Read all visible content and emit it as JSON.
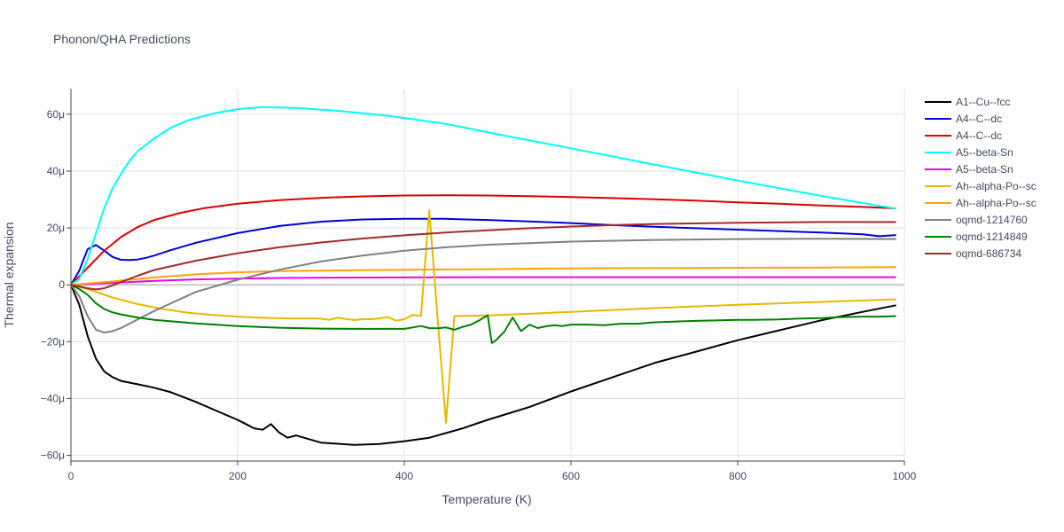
{
  "chart_data": {
    "type": "line",
    "title": "Phonon/QHA Predictions",
    "xlabel": "Temperature (K)",
    "ylabel": "Thermal expansion",
    "xlim": [
      0,
      1000
    ],
    "ylim": [
      -6.2e-05,
      6.9e-05
    ],
    "x_ticks": [
      {
        "value": 0,
        "label": "0"
      },
      {
        "value": 200,
        "label": "200"
      },
      {
        "value": 400,
        "label": "400"
      },
      {
        "value": 600,
        "label": "600"
      },
      {
        "value": 800,
        "label": "800"
      },
      {
        "value": 1000,
        "label": "1000"
      }
    ],
    "y_ticks": [
      {
        "value": -6e-05,
        "label": "−60μ"
      },
      {
        "value": -4e-05,
        "label": "−40μ"
      },
      {
        "value": -2e-05,
        "label": "−20μ"
      },
      {
        "value": 0,
        "label": "0"
      },
      {
        "value": 2e-05,
        "label": "20μ"
      },
      {
        "value": 4e-05,
        "label": "40μ"
      },
      {
        "value": 6e-05,
        "label": "60μ"
      }
    ],
    "grid": true,
    "legend_position": "right",
    "series": [
      {
        "name": "A1--Cu--fcc",
        "color": "#000000",
        "x": [
          0,
          10,
          20,
          30,
          40,
          50,
          60,
          80,
          100,
          120,
          150,
          180,
          200,
          210,
          220,
          230,
          240,
          250,
          260,
          270,
          300,
          340,
          370,
          400,
          430,
          470,
          500,
          550,
          600,
          650,
          700,
          750,
          800,
          850,
          900,
          950,
          990
        ],
        "y": [
          0,
          -7e-06,
          -1.8e-05,
          -2.6e-05,
          -3.05e-05,
          -3.25e-05,
          -3.38e-05,
          -3.5e-05,
          -3.62e-05,
          -3.78e-05,
          -4.12e-05,
          -4.5e-05,
          -4.75e-05,
          -4.9e-05,
          -5.05e-05,
          -5.1e-05,
          -4.9e-05,
          -5.2e-05,
          -5.38e-05,
          -5.3e-05,
          -5.55e-05,
          -5.63e-05,
          -5.6e-05,
          -5.5e-05,
          -5.38e-05,
          -5.05e-05,
          -4.75e-05,
          -4.3e-05,
          -3.75e-05,
          -3.25e-05,
          -2.75e-05,
          -2.35e-05,
          -1.95e-05,
          -1.6e-05,
          -1.25e-05,
          -9.5e-06,
          -7.2e-06
        ]
      },
      {
        "name": "A4--C--dc",
        "color": "#0000dd",
        "x": [
          0,
          10,
          20,
          30,
          40,
          50,
          60,
          70,
          80,
          90,
          100,
          120,
          150,
          200,
          250,
          300,
          350,
          400,
          450,
          500,
          550,
          600,
          650,
          700,
          750,
          800,
          850,
          900,
          950,
          970,
          990
        ],
        "y": [
          0,
          5e-06,
          1.25e-05,
          1.4e-05,
          1.2e-05,
          9.8e-06,
          8.8e-06,
          8.7e-06,
          8.9e-06,
          9.5e-06,
          1.03e-05,
          1.22e-05,
          1.48e-05,
          1.82e-05,
          2.07e-05,
          2.22e-05,
          2.3e-05,
          2.32e-05,
          2.32e-05,
          2.28e-05,
          2.23e-05,
          2.17e-05,
          2.1e-05,
          2.04e-05,
          1.99e-05,
          1.94e-05,
          1.89e-05,
          1.84e-05,
          1.78e-05,
          1.71e-05,
          1.75e-05
        ]
      },
      {
        "name": "A4--C--dc",
        "color": "#dd0000",
        "x": [
          0,
          20,
          40,
          60,
          80,
          100,
          130,
          160,
          200,
          250,
          300,
          350,
          400,
          450,
          500,
          550,
          600,
          650,
          700,
          750,
          800,
          850,
          900,
          950,
          990
        ],
        "y": [
          0,
          6e-06,
          1.2e-05,
          1.68e-05,
          2.03e-05,
          2.28e-05,
          2.52e-05,
          2.7e-05,
          2.85e-05,
          2.98e-05,
          3.06e-05,
          3.11e-05,
          3.14e-05,
          3.15e-05,
          3.14e-05,
          3.12e-05,
          3.09e-05,
          3.05e-05,
          3.01e-05,
          2.96e-05,
          2.9e-05,
          2.85e-05,
          2.79e-05,
          2.74e-05,
          2.69e-05
        ]
      },
      {
        "name": "A5--beta-Sn",
        "color": "#00ffff",
        "x": [
          0,
          10,
          20,
          30,
          40,
          50,
          60,
          70,
          80,
          100,
          120,
          140,
          170,
          200,
          230,
          270,
          320,
          380,
          450,
          520,
          600,
          700,
          800,
          900,
          990
        ],
        "y": [
          0,
          2e-06,
          9e-06,
          1.8e-05,
          2.7e-05,
          3.4e-05,
          3.9e-05,
          4.35e-05,
          4.7e-05,
          5.15e-05,
          5.53e-05,
          5.78e-05,
          6.02e-05,
          6.18e-05,
          6.25e-05,
          6.22e-05,
          6.12e-05,
          5.95e-05,
          5.66e-05,
          5.25e-05,
          4.8e-05,
          4.23e-05,
          3.67e-05,
          3.13e-05,
          2.68e-05
        ]
      },
      {
        "name": "A5--beta-Sn",
        "color": "#ee00ee",
        "x": [
          0,
          50,
          100,
          150,
          200,
          250,
          300,
          400,
          500,
          600,
          700,
          800,
          900,
          990
        ],
        "y": [
          0,
          7e-07,
          1.4e-06,
          1.9e-06,
          2.2e-06,
          2.4e-06,
          2.5e-06,
          2.6e-06,
          2.7e-06,
          2.7e-06,
          2.7e-06,
          2.7e-06,
          2.7e-06,
          2.7e-06
        ]
      },
      {
        "name": "Ah--alpha-Po--sc",
        "color": "#e6b800",
        "x": [
          0,
          20,
          50,
          80,
          110,
          140,
          170,
          200,
          230,
          260,
          290,
          300,
          310,
          320,
          330,
          340,
          350,
          360,
          370,
          380,
          390,
          400,
          410,
          420,
          425,
          430,
          440,
          450,
          460,
          500,
          550,
          600,
          700,
          800,
          900,
          990
        ],
        "y": [
          0,
          -1.5e-06,
          -4.5e-06,
          -6.8e-06,
          -8.5e-06,
          -9.8e-06,
          -1.06e-05,
          -1.12e-05,
          -1.16e-05,
          -1.18e-05,
          -1.18e-05,
          -1.19e-05,
          -1.23e-05,
          -1.16e-05,
          -1.2e-05,
          -1.24e-05,
          -1.21e-05,
          -1.21e-05,
          -1.18e-05,
          -1.13e-05,
          -1.26e-05,
          -1.21e-05,
          -1.06e-05,
          -1.09e-05,
          8e-06,
          2.62e-05,
          -1.2e-05,
          -4.85e-05,
          -1.1e-05,
          -1.08e-05,
          -1.02e-05,
          -9.5e-06,
          -8.2e-06,
          -7e-06,
          -6e-06,
          -5.1e-06
        ]
      },
      {
        "name": "Ah--alpha-Po--sc",
        "color": "#ffa500",
        "x": [
          0,
          50,
          100,
          150,
          200,
          250,
          300,
          400,
          500,
          600,
          700,
          800,
          900,
          990
        ],
        "y": [
          0,
          1.2e-06,
          2.6e-06,
          3.7e-06,
          4.4e-06,
          4.8e-06,
          5e-06,
          5.3e-06,
          5.5e-06,
          5.8e-06,
          5.9e-06,
          6e-06,
          6.1e-06,
          6.2e-06
        ]
      },
      {
        "name": "oqmd-1214760",
        "color": "#808080",
        "x": [
          0,
          10,
          20,
          30,
          40,
          50,
          60,
          80,
          100,
          150,
          200,
          250,
          300,
          350,
          400,
          450,
          500,
          600,
          700,
          800,
          900,
          990
        ],
        "y": [
          0,
          -4e-06,
          -1.1e-05,
          -1.58e-05,
          -1.68e-05,
          -1.63e-05,
          -1.52e-05,
          -1.22e-05,
          -9.2e-06,
          -2.5e-06,
          1.8e-06,
          5.3e-06,
          8.2e-06,
          1.03e-05,
          1.2e-05,
          1.32e-05,
          1.41e-05,
          1.52e-05,
          1.58e-05,
          1.61e-05,
          1.62e-05,
          1.61e-05
        ]
      },
      {
        "name": "oqmd-1214849",
        "color": "#008000",
        "x": [
          0,
          10,
          20,
          30,
          40,
          50,
          60,
          80,
          100,
          150,
          200,
          250,
          300,
          350,
          400,
          410,
          420,
          430,
          440,
          450,
          460,
          470,
          480,
          490,
          500,
          505,
          510,
          520,
          530,
          540,
          550,
          560,
          570,
          580,
          590,
          600,
          620,
          640,
          660,
          680,
          700,
          750,
          800,
          820,
          850,
          870,
          900,
          920,
          950,
          970,
          990
        ],
        "y": [
          0,
          -1.5e-06,
          -3.5e-06,
          -6.5e-06,
          -8.5e-06,
          -9.7e-06,
          -1.04e-05,
          -1.15e-05,
          -1.23e-05,
          -1.36e-05,
          -1.45e-05,
          -1.51e-05,
          -1.54e-05,
          -1.55e-05,
          -1.55e-05,
          -1.5e-05,
          -1.45e-05,
          -1.52e-05,
          -1.53e-05,
          -1.5e-05,
          -1.58e-05,
          -1.48e-05,
          -1.4e-05,
          -1.25e-05,
          -1.07e-05,
          -2.05e-05,
          -1.95e-05,
          -1.65e-05,
          -1.15e-05,
          -1.63e-05,
          -1.4e-05,
          -1.52e-05,
          -1.46e-05,
          -1.42e-05,
          -1.45e-05,
          -1.4e-05,
          -1.4e-05,
          -1.42e-05,
          -1.37e-05,
          -1.37e-05,
          -1.32e-05,
          -1.27e-05,
          -1.23e-05,
          -1.23e-05,
          -1.22e-05,
          -1.19e-05,
          -1.17e-05,
          -1.14e-05,
          -1.12e-05,
          -1.12e-05,
          -1.1e-05
        ]
      },
      {
        "name": "oqmd-686734",
        "color": "#a52a2a",
        "x": [
          0,
          10,
          20,
          30,
          40,
          50,
          60,
          80,
          100,
          150,
          200,
          250,
          300,
          350,
          400,
          450,
          500,
          550,
          600,
          650,
          700,
          800,
          900,
          990
        ],
        "y": [
          0,
          -6e-07,
          -1.2e-06,
          -1.6e-06,
          -1.2e-06,
          -2e-07,
          1e-06,
          3.2e-06,
          5.2e-06,
          8.5e-06,
          1.11e-05,
          1.32e-05,
          1.49e-05,
          1.63e-05,
          1.74e-05,
          1.84e-05,
          1.92e-05,
          1.99e-05,
          2.05e-05,
          2.1e-05,
          2.14e-05,
          2.18e-05,
          2.21e-05,
          2.21e-05
        ]
      }
    ]
  }
}
